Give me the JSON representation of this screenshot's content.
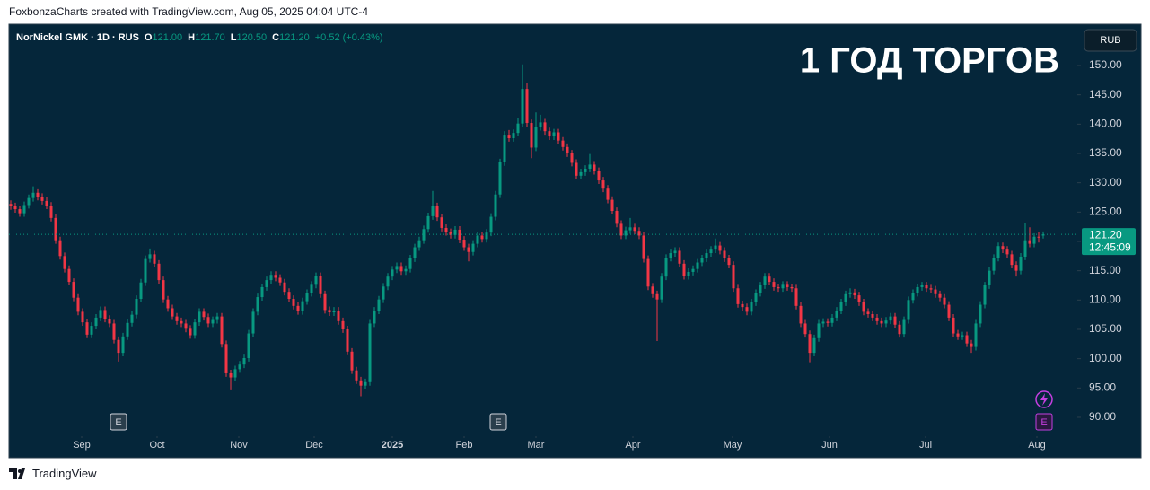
{
  "header": "FoxbonzaCharts created with TradingView.com, Aug 05, 2025 04:04 UTC-4",
  "footer": "TradingView",
  "chart_data": {
    "type": "candlestick",
    "title": "1 ГОД ТОРГОВ",
    "currency": "RUB",
    "legend": {
      "symbol": "NorNickel GMK · 1D · RUS",
      "o_label": "O",
      "open": "121.00",
      "h_label": "H",
      "high": "121.70",
      "l_label": "L",
      "low": "120.50",
      "c_label": "C",
      "close": "121.20",
      "change": "+0.52 (+0.43%)"
    },
    "last_price_label": "121.20",
    "countdown": "12:45:09",
    "events": [
      "E",
      "E",
      "E"
    ],
    "up_color": "#089981",
    "down_color": "#f23645",
    "grid": false,
    "ylim": [
      87.24,
      156.89
    ],
    "yticks": [
      {
        "value": 90,
        "label": "90.00"
      },
      {
        "value": 95,
        "label": "95.00"
      },
      {
        "value": 100,
        "label": "100.00"
      },
      {
        "value": 105,
        "label": "105.00"
      },
      {
        "value": 110,
        "label": "110.00"
      },
      {
        "value": 115,
        "label": "115.00"
      },
      {
        "value": 120,
        "label": "120.00"
      },
      {
        "value": 125,
        "label": "125.00"
      },
      {
        "value": 130,
        "label": "130.00"
      },
      {
        "value": 135,
        "label": "135.00"
      },
      {
        "value": 140,
        "label": "140.00"
      },
      {
        "value": 145,
        "label": "145.00"
      },
      {
        "value": 150,
        "label": "150.00"
      }
    ],
    "xticks": [
      {
        "value": 15.8,
        "label": "Sep"
      },
      {
        "value": 32.6,
        "label": "Oct"
      },
      {
        "value": 50.8,
        "label": "Nov"
      },
      {
        "value": 67.6,
        "label": "Dec"
      },
      {
        "value": 85,
        "label": "2025"
      },
      {
        "value": 101,
        "label": "Feb"
      },
      {
        "value": 117,
        "label": "Mar"
      },
      {
        "value": 138.6,
        "label": "Apr"
      },
      {
        "value": 160.8,
        "label": "May"
      },
      {
        "value": 182.4,
        "label": "Jun"
      },
      {
        "value": 203.8,
        "label": "Jul"
      },
      {
        "value": 228.6,
        "label": "Aug"
      }
    ],
    "open": [
      126.4,
      126.0,
      125.5,
      124.8,
      126.2,
      127.4,
      128.3,
      127.6,
      126.9,
      126.1,
      124.0,
      120.2,
      117.5,
      115.3,
      113.1,
      110.4,
      108.0,
      106.2,
      104.1,
      105.6,
      107.0,
      108.3,
      106.8,
      106.0,
      103.2,
      101.0,
      103.8,
      106.1,
      107.5,
      110.2,
      113.0,
      117.0,
      117.8,
      116.2,
      113.4,
      110.1,
      108.6,
      107.2,
      106.4,
      106.0,
      105.1,
      104.0,
      106.2,
      108.0,
      107.1,
      106.0,
      106.6,
      107.2,
      102.5,
      97.5,
      96.8,
      98.2,
      99.0,
      100.1,
      104.3,
      108.0,
      110.5,
      112.2,
      113.4,
      114.3,
      113.8,
      113.0,
      111.4,
      110.2,
      109.0,
      108.1,
      109.8,
      111.2,
      112.6,
      114.1,
      111.0,
      108.3,
      107.9,
      108.2,
      106.4,
      105.0,
      101.2,
      98.0,
      96.3,
      95.4,
      96.0,
      106.0,
      108.2,
      110.1,
      112.3,
      114.0,
      115.2,
      115.8,
      114.9,
      115.3,
      117.1,
      119.0,
      120.2,
      122.1,
      124.3,
      126.0,
      124.1,
      122.3,
      121.6,
      121.1,
      122.0,
      120.3,
      119.0,
      118.2,
      119.6,
      121.0,
      120.4,
      121.5,
      124.2,
      128.0,
      133.5,
      138.2,
      137.6,
      138.5,
      140.1,
      146.0,
      140.2,
      136.0,
      139.5,
      140.3,
      138.8,
      137.9,
      138.6,
      137.2,
      136.1,
      135.0,
      133.4,
      131.2,
      131.8,
      132.4,
      133.1,
      132.0,
      130.4,
      129.0,
      127.1,
      125.2,
      123.0,
      121.0,
      121.9,
      122.4,
      121.8,
      121.0,
      117.0,
      112.3,
      111.0,
      110.1,
      114.0,
      117.2,
      118.0,
      118.4,
      116.2,
      114.1,
      114.8,
      115.3,
      116.4,
      117.1,
      118.0,
      118.6,
      119.3,
      118.4,
      117.1,
      116.0,
      112.0,
      109.3,
      108.8,
      108.0,
      109.6,
      111.2,
      112.5,
      114.0,
      113.1,
      112.2,
      112.0,
      112.6,
      112.2,
      112.0,
      109.0,
      106.0,
      104.2,
      101.0,
      103.5,
      106.0,
      106.3,
      106.1,
      107.0,
      108.2,
      109.6,
      111.0,
      111.3,
      110.8,
      109.6,
      108.0,
      107.6,
      107.0,
      106.4,
      106.0,
      106.5,
      107.2,
      105.8,
      104.2,
      106.6,
      110.0,
      111.2,
      112.2,
      112.5,
      112.0,
      111.8,
      111.0,
      110.4,
      109.2,
      107.0,
      104.3,
      103.8,
      104.0,
      102.6,
      102.0,
      106.0,
      109.2,
      112.5,
      115.0,
      117.2,
      119.2,
      118.6,
      117.8,
      116.0,
      115.0,
      117.4,
      120.2,
      119.6,
      120.8,
      121.0
    ],
    "high": [
      127.0,
      126.6,
      126.1,
      126.8,
      128.0,
      129.4,
      128.9,
      128.2,
      127.5,
      126.7,
      124.6,
      120.8,
      118.1,
      115.9,
      113.7,
      111.0,
      108.6,
      106.8,
      106.2,
      107.6,
      108.9,
      108.9,
      107.4,
      106.6,
      103.8,
      104.4,
      106.7,
      108.1,
      110.8,
      113.6,
      117.6,
      118.8,
      118.4,
      116.8,
      114.0,
      110.7,
      109.2,
      107.8,
      107.0,
      106.6,
      105.7,
      106.8,
      108.6,
      108.6,
      107.7,
      107.2,
      107.8,
      107.8,
      103.1,
      98.1,
      98.8,
      99.6,
      100.7,
      104.9,
      108.6,
      111.1,
      112.8,
      114.0,
      114.9,
      114.9,
      114.4,
      113.6,
      112.0,
      110.8,
      109.6,
      110.4,
      111.8,
      113.2,
      114.7,
      114.7,
      111.6,
      108.9,
      108.8,
      108.8,
      107.0,
      105.6,
      101.8,
      98.6,
      96.9,
      96.6,
      106.6,
      108.8,
      110.7,
      112.9,
      114.6,
      115.8,
      116.4,
      116.4,
      115.9,
      117.7,
      119.6,
      120.8,
      122.7,
      124.9,
      128.6,
      126.6,
      124.7,
      122.9,
      122.2,
      122.6,
      122.6,
      120.9,
      119.6,
      120.2,
      121.6,
      121.6,
      122.1,
      124.8,
      128.6,
      134.1,
      138.8,
      139.0,
      139.1,
      141.0,
      150.2,
      147.0,
      140.8,
      142.0,
      141.6,
      140.9,
      139.4,
      139.2,
      139.2,
      137.8,
      136.7,
      135.6,
      134.0,
      132.4,
      133.0,
      134.9,
      133.7,
      132.6,
      131.0,
      129.6,
      127.7,
      125.8,
      123.6,
      122.5,
      124.0,
      123.0,
      122.4,
      121.6,
      117.6,
      112.9,
      111.6,
      114.6,
      117.8,
      118.6,
      119.0,
      119.0,
      116.8,
      115.4,
      115.9,
      117.0,
      117.7,
      118.6,
      119.2,
      120.5,
      119.9,
      119.0,
      117.7,
      116.6,
      112.6,
      109.9,
      109.4,
      110.2,
      111.8,
      113.1,
      114.6,
      114.6,
      113.7,
      112.8,
      113.2,
      113.2,
      112.8,
      112.6,
      109.6,
      106.6,
      104.8,
      104.1,
      106.6,
      106.9,
      106.9,
      107.6,
      108.8,
      110.2,
      111.6,
      112.0,
      111.9,
      111.4,
      110.2,
      108.6,
      108.2,
      107.6,
      107.0,
      107.1,
      107.8,
      107.8,
      106.4,
      107.2,
      110.6,
      111.8,
      112.8,
      113.1,
      113.1,
      112.6,
      112.4,
      111.6,
      111.0,
      109.8,
      107.6,
      104.9,
      104.6,
      104.6,
      103.2,
      106.6,
      109.8,
      113.1,
      115.6,
      117.8,
      119.8,
      119.8,
      119.2,
      118.4,
      116.6,
      118.0,
      123.2,
      122.4,
      121.4,
      121.6,
      121.7
    ],
    "low": [
      125.4,
      124.9,
      124.2,
      124.2,
      125.6,
      126.8,
      127.0,
      126.3,
      125.5,
      123.4,
      119.6,
      116.9,
      114.7,
      112.5,
      109.8,
      107.4,
      105.6,
      103.5,
      103.5,
      105.0,
      106.4,
      106.2,
      105.4,
      102.6,
      99.5,
      100.4,
      103.2,
      105.5,
      106.9,
      109.6,
      112.4,
      116.4,
      115.6,
      112.8,
      109.5,
      108.0,
      106.6,
      105.8,
      105.4,
      104.5,
      103.4,
      103.4,
      105.6,
      106.5,
      105.4,
      105.4,
      106.0,
      101.9,
      96.9,
      94.6,
      96.2,
      97.6,
      98.4,
      99.5,
      103.7,
      107.4,
      109.9,
      111.6,
      112.8,
      113.2,
      112.4,
      110.8,
      109.6,
      108.4,
      107.5,
      107.5,
      109.2,
      110.6,
      112.0,
      110.4,
      107.7,
      107.3,
      107.3,
      105.8,
      104.4,
      100.6,
      97.4,
      95.7,
      93.6,
      94.8,
      95.4,
      105.4,
      107.6,
      109.5,
      111.7,
      113.4,
      114.6,
      114.3,
      114.3,
      114.7,
      116.5,
      118.4,
      119.6,
      121.5,
      123.7,
      123.5,
      121.7,
      121.0,
      120.5,
      120.5,
      119.7,
      118.4,
      116.6,
      117.6,
      119.0,
      119.8,
      119.8,
      120.9,
      123.6,
      127.4,
      132.9,
      137.0,
      137.0,
      137.9,
      139.5,
      139.6,
      134.2,
      135.4,
      138.9,
      138.2,
      137.3,
      137.3,
      136.6,
      135.5,
      134.4,
      132.8,
      130.6,
      130.6,
      131.2,
      131.8,
      131.4,
      129.8,
      128.4,
      126.5,
      124.6,
      122.4,
      120.4,
      120.4,
      121.3,
      121.2,
      120.4,
      116.4,
      111.7,
      110.4,
      103.0,
      109.5,
      113.4,
      116.6,
      117.4,
      115.6,
      113.5,
      113.5,
      114.2,
      114.7,
      115.8,
      116.5,
      117.4,
      118.0,
      117.8,
      116.5,
      115.4,
      111.4,
      108.7,
      108.2,
      107.4,
      107.4,
      109.0,
      110.6,
      111.9,
      112.5,
      111.6,
      111.4,
      111.4,
      111.6,
      111.4,
      108.4,
      105.4,
      103.6,
      99.4,
      100.4,
      102.9,
      105.4,
      105.5,
      105.5,
      106.4,
      107.6,
      109.0,
      110.4,
      110.2,
      109.0,
      107.4,
      107.0,
      106.4,
      105.8,
      105.4,
      105.4,
      105.9,
      105.2,
      103.6,
      103.6,
      106.0,
      109.4,
      110.6,
      111.6,
      111.4,
      111.2,
      110.4,
      109.8,
      108.6,
      106.4,
      103.7,
      103.2,
      103.2,
      102.0,
      101.0,
      101.4,
      105.4,
      108.6,
      111.9,
      114.4,
      116.6,
      118.0,
      117.2,
      115.4,
      114.0,
      114.4,
      116.8,
      119.0,
      119.0,
      119.8,
      120.5
    ],
    "close": [
      126.0,
      125.5,
      124.8,
      126.2,
      127.4,
      128.3,
      127.6,
      126.9,
      126.1,
      124.0,
      120.2,
      117.5,
      115.3,
      113.1,
      110.4,
      108.0,
      106.2,
      104.1,
      105.6,
      107.0,
      108.3,
      106.8,
      106.0,
      103.2,
      101.0,
      103.8,
      106.1,
      107.5,
      110.2,
      113.0,
      117.0,
      117.8,
      116.2,
      113.4,
      110.1,
      108.6,
      107.2,
      106.4,
      106.0,
      105.1,
      104.0,
      106.2,
      108.0,
      107.1,
      106.0,
      106.6,
      107.2,
      102.5,
      97.5,
      96.8,
      98.2,
      99.0,
      100.1,
      104.3,
      108.0,
      110.5,
      112.2,
      113.4,
      114.3,
      113.8,
      113.0,
      111.4,
      110.2,
      109.0,
      108.1,
      109.8,
      111.2,
      112.6,
      114.1,
      111.0,
      108.3,
      107.9,
      108.2,
      106.4,
      105.0,
      101.2,
      98.0,
      96.3,
      95.4,
      96.0,
      106.0,
      108.2,
      110.1,
      112.3,
      114.0,
      115.2,
      115.8,
      114.9,
      115.3,
      117.1,
      119.0,
      120.2,
      122.1,
      124.3,
      126.0,
      124.1,
      122.3,
      121.6,
      121.1,
      122.0,
      120.3,
      119.0,
      118.2,
      119.6,
      121.0,
      120.4,
      121.5,
      124.2,
      128.0,
      133.5,
      138.2,
      137.6,
      138.5,
      140.1,
      146.0,
      140.2,
      136.0,
      139.5,
      140.3,
      138.8,
      137.9,
      138.6,
      137.2,
      136.1,
      135.0,
      133.4,
      131.2,
      131.8,
      132.4,
      133.1,
      132.0,
      130.4,
      129.0,
      127.1,
      125.2,
      123.0,
      121.0,
      121.9,
      122.4,
      121.8,
      121.0,
      117.0,
      112.3,
      111.0,
      110.1,
      114.0,
      117.2,
      118.0,
      118.4,
      116.2,
      114.1,
      114.8,
      115.3,
      116.4,
      117.1,
      118.0,
      118.6,
      119.3,
      118.4,
      117.1,
      116.0,
      112.0,
      109.3,
      108.8,
      108.0,
      109.6,
      111.2,
      112.5,
      114.0,
      113.1,
      112.2,
      112.0,
      112.6,
      112.2,
      112.0,
      109.0,
      106.0,
      104.2,
      101.0,
      103.5,
      106.0,
      106.3,
      106.1,
      107.0,
      108.2,
      109.6,
      111.0,
      111.3,
      110.8,
      109.6,
      108.0,
      107.6,
      107.0,
      106.4,
      106.0,
      106.5,
      107.2,
      105.8,
      104.2,
      106.6,
      110.0,
      111.2,
      112.2,
      112.5,
      112.0,
      111.8,
      111.0,
      110.4,
      109.2,
      107.0,
      104.3,
      103.8,
      104.0,
      102.6,
      102.0,
      106.0,
      109.2,
      112.5,
      115.0,
      117.2,
      119.2,
      118.6,
      117.8,
      116.0,
      115.0,
      117.4,
      120.2,
      119.6,
      120.8,
      120.68,
      121.2
    ]
  }
}
